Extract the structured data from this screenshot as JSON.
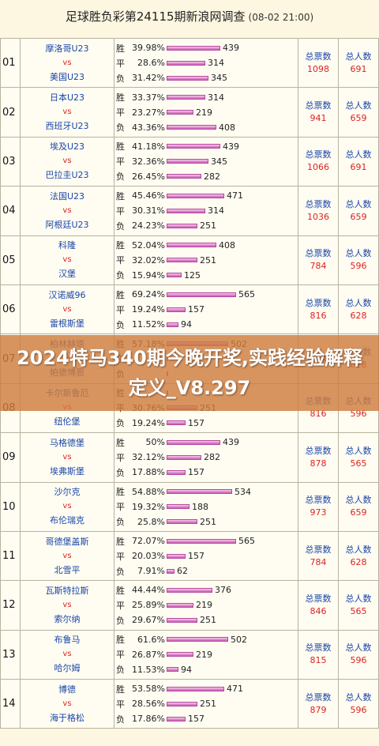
{
  "header": {
    "title": "足球胜负彩第24115期新浪网调查",
    "time": "(08-02 21:00)"
  },
  "labels": {
    "win": "胜",
    "draw": "平",
    "loss": "负",
    "vs": "vs",
    "total_votes": "总票数",
    "total_people": "总人数"
  },
  "rows": [
    {
      "idx": "01",
      "home": "摩洛哥U23",
      "away": "美国U23",
      "win": {
        "pct": "39.98%",
        "count": "439"
      },
      "draw": {
        "pct": "28.6%",
        "count": "314"
      },
      "loss": {
        "pct": "31.42%",
        "count": "345"
      },
      "votes": "1098",
      "people": "691"
    },
    {
      "idx": "02",
      "home": "日本U23",
      "away": "西班牙U23",
      "win": {
        "pct": "33.37%",
        "count": "314"
      },
      "draw": {
        "pct": "23.27%",
        "count": "219"
      },
      "loss": {
        "pct": "43.36%",
        "count": "408"
      },
      "votes": "941",
      "people": "659"
    },
    {
      "idx": "03",
      "home": "埃及U23",
      "away": "巴拉圭U23",
      "win": {
        "pct": "41.18%",
        "count": "439"
      },
      "draw": {
        "pct": "32.36%",
        "count": "345"
      },
      "loss": {
        "pct": "26.45%",
        "count": "282"
      },
      "votes": "1066",
      "people": "691"
    },
    {
      "idx": "04",
      "home": "法国U23",
      "away": "阿根廷U23",
      "win": {
        "pct": "45.46%",
        "count": "471"
      },
      "draw": {
        "pct": "30.31%",
        "count": "314"
      },
      "loss": {
        "pct": "24.23%",
        "count": "251"
      },
      "votes": "1036",
      "people": "659"
    },
    {
      "idx": "05",
      "home": "科隆",
      "away": "汉堡",
      "win": {
        "pct": "52.04%",
        "count": "408"
      },
      "draw": {
        "pct": "32.02%",
        "count": "251"
      },
      "loss": {
        "pct": "15.94%",
        "count": "125"
      },
      "votes": "784",
      "people": "596"
    },
    {
      "idx": "06",
      "home": "汉诺威96",
      "away": "雷根斯堡",
      "win": {
        "pct": "69.24%",
        "count": "565"
      },
      "draw": {
        "pct": "19.24%",
        "count": "157"
      },
      "loss": {
        "pct": "11.52%",
        "count": "94"
      },
      "votes": "816",
      "people": "628"
    },
    {
      "idx": "07",
      "home": "柏林赫塔",
      "away": "帕德博恩",
      "win": {
        "pct": "57.18%",
        "count": "502"
      },
      "draw": {
        "pct": "",
        "count": ""
      },
      "loss": {
        "pct": "",
        "count": ""
      },
      "votes": "",
      "people": "628"
    },
    {
      "idx": "08",
      "home": "卡尔斯鲁厄",
      "away": "纽伦堡",
      "win": {
        "pct": "",
        "count": ""
      },
      "draw": {
        "pct": "30.76%",
        "count": "251"
      },
      "loss": {
        "pct": "19.24%",
        "count": "157"
      },
      "votes": "816",
      "people": "596"
    },
    {
      "idx": "09",
      "home": "马格德堡",
      "away": "埃弗斯堡",
      "win": {
        "pct": "50%",
        "count": "439"
      },
      "draw": {
        "pct": "32.12%",
        "count": "282"
      },
      "loss": {
        "pct": "17.88%",
        "count": "157"
      },
      "votes": "878",
      "people": "565"
    },
    {
      "idx": "10",
      "home": "沙尔克",
      "away": "布伦瑞克",
      "win": {
        "pct": "54.88%",
        "count": "534"
      },
      "draw": {
        "pct": "19.32%",
        "count": "188"
      },
      "loss": {
        "pct": "25.8%",
        "count": "251"
      },
      "votes": "973",
      "people": "659"
    },
    {
      "idx": "11",
      "home": "哥德堡盖斯",
      "away": "北雪平",
      "win": {
        "pct": "72.07%",
        "count": "565"
      },
      "draw": {
        "pct": "20.03%",
        "count": "157"
      },
      "loss": {
        "pct": "7.91%",
        "count": "62"
      },
      "votes": "784",
      "people": "628"
    },
    {
      "idx": "12",
      "home": "瓦斯特拉斯",
      "away": "索尔纳",
      "win": {
        "pct": "44.44%",
        "count": "376"
      },
      "draw": {
        "pct": "25.89%",
        "count": "219"
      },
      "loss": {
        "pct": "29.67%",
        "count": "251"
      },
      "votes": "846",
      "people": "565"
    },
    {
      "idx": "13",
      "home": "布鲁马",
      "away": "哈尔姆",
      "win": {
        "pct": "61.6%",
        "count": "502"
      },
      "draw": {
        "pct": "26.87%",
        "count": "219"
      },
      "loss": {
        "pct": "11.53%",
        "count": "94"
      },
      "votes": "815",
      "people": "596"
    },
    {
      "idx": "14",
      "home": "博德",
      "away": "海于格松",
      "win": {
        "pct": "53.58%",
        "count": "471"
      },
      "draw": {
        "pct": "28.56%",
        "count": "251"
      },
      "loss": {
        "pct": "17.86%",
        "count": "157"
      },
      "votes": "879",
      "people": "596"
    }
  ],
  "banner": {
    "text": "2024特马340期今晚开奖,实践经验解释定义_V8.297"
  }
}
